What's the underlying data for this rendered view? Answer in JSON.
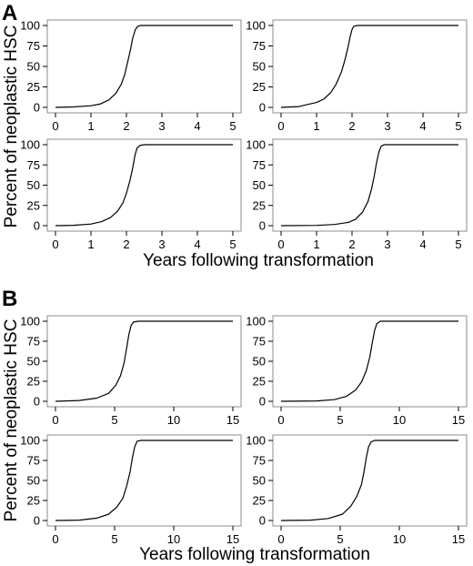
{
  "figure": {
    "sections": [
      {
        "letter": "A",
        "ylabel": "Percent of neoplastic HSC",
        "xlabel": "Years following transformation"
      },
      {
        "letter": "B",
        "ylabel": "Percent of neoplastic HSC",
        "xlabel": "Years following transformation"
      }
    ]
  },
  "chart_data": [
    {
      "type": "line",
      "section": "A",
      "xlim": [
        0,
        5
      ],
      "ylim": [
        0,
        100
      ],
      "xticks": [
        0,
        1,
        2,
        3,
        4,
        5
      ],
      "yticks": [
        0,
        25,
        50,
        75,
        100
      ],
      "x": [
        0,
        0.5,
        1,
        1.25,
        1.5,
        1.7,
        1.85,
        1.95,
        2.05,
        2.12,
        2.18,
        2.25,
        2.32,
        2.4,
        2.6,
        3,
        4,
        5
      ],
      "y": [
        0,
        0.5,
        2,
        4,
        9,
        17,
        28,
        40,
        58,
        72,
        85,
        95,
        99,
        100,
        100,
        100,
        100,
        100
      ]
    },
    {
      "type": "line",
      "section": "A",
      "xlim": [
        0,
        5
      ],
      "ylim": [
        0,
        100
      ],
      "xticks": [
        0,
        1,
        2,
        3,
        4,
        5
      ],
      "yticks": [
        0,
        25,
        50,
        75,
        100
      ],
      "x": [
        0,
        0.5,
        1,
        1.2,
        1.4,
        1.55,
        1.7,
        1.8,
        1.88,
        1.95,
        2.0,
        2.05,
        2.15,
        2.3,
        3,
        4,
        5
      ],
      "y": [
        0,
        1,
        6,
        10,
        18,
        28,
        43,
        58,
        72,
        87,
        95,
        99,
        100,
        100,
        100,
        100,
        100
      ]
    },
    {
      "type": "line",
      "section": "A",
      "xlim": [
        0,
        5
      ],
      "ylim": [
        0,
        100
      ],
      "xticks": [
        0,
        1,
        2,
        3,
        4,
        5
      ],
      "yticks": [
        0,
        25,
        50,
        75,
        100
      ],
      "x": [
        0,
        0.5,
        1,
        1.3,
        1.55,
        1.75,
        1.9,
        2.0,
        2.1,
        2.18,
        2.24,
        2.3,
        2.38,
        2.5,
        3,
        4,
        5
      ],
      "y": [
        0,
        0.5,
        2,
        5,
        10,
        18,
        28,
        40,
        56,
        72,
        87,
        96,
        99,
        100,
        100,
        100,
        100
      ]
    },
    {
      "type": "line",
      "section": "A",
      "xlim": [
        0,
        5
      ],
      "ylim": [
        0,
        100
      ],
      "xticks": [
        0,
        1,
        2,
        3,
        4,
        5
      ],
      "yticks": [
        0,
        25,
        50,
        75,
        100
      ],
      "x": [
        0,
        1,
        1.5,
        1.9,
        2.1,
        2.3,
        2.45,
        2.55,
        2.62,
        2.68,
        2.75,
        2.82,
        2.9,
        3.05,
        3.5,
        4,
        5
      ],
      "y": [
        0,
        0.3,
        1.5,
        4,
        8,
        17,
        30,
        45,
        60,
        75,
        90,
        98,
        100,
        100,
        100,
        100,
        100
      ]
    },
    {
      "type": "line",
      "section": "B",
      "xlim": [
        0,
        15
      ],
      "ylim": [
        0,
        100
      ],
      "xticks": [
        0,
        5,
        10,
        15
      ],
      "yticks": [
        0,
        25,
        50,
        75,
        100
      ],
      "x": [
        0,
        2,
        3.5,
        4.5,
        5.1,
        5.5,
        5.8,
        6.0,
        6.2,
        6.4,
        6.6,
        7.0,
        8,
        10,
        12,
        15
      ],
      "y": [
        0,
        1,
        4,
        10,
        20,
        32,
        48,
        65,
        83,
        95,
        99,
        100,
        100,
        100,
        100,
        100
      ]
    },
    {
      "type": "line",
      "section": "B",
      "xlim": [
        0,
        15
      ],
      "ylim": [
        0,
        100
      ],
      "xticks": [
        0,
        5,
        10,
        15
      ],
      "yticks": [
        0,
        25,
        50,
        75,
        100
      ],
      "x": [
        0,
        3,
        4.5,
        5.5,
        6.3,
        6.8,
        7.2,
        7.5,
        7.7,
        7.9,
        8.1,
        8.4,
        9,
        10,
        12,
        15
      ],
      "y": [
        0,
        0.5,
        2,
        6,
        14,
        24,
        38,
        55,
        72,
        88,
        97,
        100,
        100,
        100,
        100,
        100
      ]
    },
    {
      "type": "line",
      "section": "B",
      "xlim": [
        0,
        15
      ],
      "ylim": [
        0,
        100
      ],
      "xticks": [
        0,
        5,
        10,
        15
      ],
      "yticks": [
        0,
        25,
        50,
        75,
        100
      ],
      "x": [
        0,
        2,
        3.5,
        4.5,
        5.2,
        5.7,
        6.0,
        6.3,
        6.5,
        6.7,
        6.9,
        7.2,
        8,
        10,
        12,
        15
      ],
      "y": [
        0,
        0.5,
        3,
        8,
        17,
        28,
        42,
        60,
        78,
        92,
        99,
        100,
        100,
        100,
        100,
        100
      ]
    },
    {
      "type": "line",
      "section": "B",
      "xlim": [
        0,
        15
      ],
      "ylim": [
        0,
        100
      ],
      "xticks": [
        0,
        5,
        10,
        15
      ],
      "yticks": [
        0,
        25,
        50,
        75,
        100
      ],
      "x": [
        0,
        2.5,
        4,
        5.2,
        5.9,
        6.4,
        6.8,
        7.0,
        7.2,
        7.4,
        7.6,
        7.9,
        8.5,
        10,
        12,
        15
      ],
      "y": [
        0,
        0.5,
        2.5,
        8,
        18,
        30,
        45,
        60,
        78,
        92,
        98,
        100,
        100,
        100,
        100,
        100
      ]
    }
  ]
}
